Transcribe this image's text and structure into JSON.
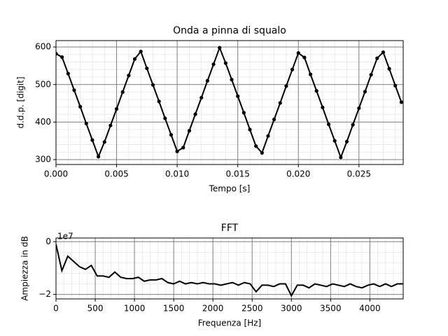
{
  "chart_data": [
    {
      "type": "line",
      "title": "Onda a pinna di squalo",
      "xlabel": "Tempo [s]",
      "ylabel": "d.d.p. [digit]",
      "x": [
        0,
        0.0005,
        0.001,
        0.0015,
        0.002,
        0.0025,
        0.003,
        0.0035,
        0.004,
        0.0045,
        0.005,
        0.0055,
        0.006,
        0.0065,
        0.007,
        0.0075,
        0.008,
        0.0085,
        0.009,
        0.0095,
        0.01,
        0.0105,
        0.011,
        0.0115,
        0.012,
        0.0125,
        0.013,
        0.0135,
        0.014,
        0.0145,
        0.015,
        0.0155,
        0.016,
        0.0165,
        0.017,
        0.0175,
        0.018,
        0.0185,
        0.019,
        0.0195,
        0.02,
        0.0205,
        0.021,
        0.0215,
        0.022,
        0.0225,
        0.023,
        0.0235,
        0.024,
        0.0245,
        0.025,
        0.0255,
        0.026,
        0.0265,
        0.027,
        0.0275,
        0.028,
        0.0285
      ],
      "values": [
        582,
        573,
        529,
        485,
        441,
        396,
        352,
        308,
        347,
        391,
        435,
        480,
        524,
        568,
        588,
        543,
        499,
        455,
        410,
        366,
        322,
        332,
        377,
        421,
        465,
        510,
        554,
        598,
        557,
        513,
        469,
        425,
        380,
        336,
        318,
        363,
        407,
        451,
        496,
        540,
        584,
        572,
        527,
        483,
        439,
        394,
        350,
        306,
        348,
        393,
        437,
        481,
        526,
        570,
        586,
        542,
        497,
        453
      ],
      "color": "#000000",
      "markers": true,
      "xlim": [
        0,
        0.02865
      ],
      "ylim": [
        287,
        617
      ],
      "xticks": [
        {
          "value": 0,
          "label": "0.000"
        },
        {
          "value": 0.005,
          "label": "0.005"
        },
        {
          "value": 0.01,
          "label": "0.010"
        },
        {
          "value": 0.015,
          "label": "0.015"
        },
        {
          "value": 0.02,
          "label": "0.020"
        },
        {
          "value": 0.025,
          "label": "0.025"
        }
      ],
      "yticks": [
        300,
        400,
        500,
        600
      ],
      "grid": true
    },
    {
      "type": "line",
      "title": "FFT",
      "xlabel": "Frequenza [Hz]",
      "ylabel": "Ampiezza in dB",
      "y_offset_label": "1e7",
      "x": [
        0,
        75,
        150,
        225,
        300,
        375,
        450,
        525,
        600,
        675,
        750,
        825,
        900,
        975,
        1050,
        1125,
        1200,
        1275,
        1350,
        1425,
        1500,
        1575,
        1650,
        1725,
        1800,
        1875,
        1950,
        2025,
        2100,
        2175,
        2250,
        2325,
        2400,
        2475,
        2550,
        2625,
        2700,
        2775,
        2850,
        2925,
        3000,
        3075,
        3150,
        3225,
        3300,
        3375,
        3450,
        3525,
        3600,
        3675,
        3750,
        3825,
        3900,
        3975,
        4050,
        4125,
        4200,
        4275,
        4350,
        4425
      ],
      "values": [
        -1000000,
        -11000000,
        -5500000,
        -7500000,
        -9500000,
        -10500000,
        -9000000,
        -13000000,
        -13000000,
        -13500000,
        -11500000,
        -13500000,
        -14000000,
        -14000000,
        -13500000,
        -15000000,
        -14500000,
        -14500000,
        -14000000,
        -15500000,
        -16000000,
        -15000000,
        -16000000,
        -15500000,
        -16000000,
        -15500000,
        -16000000,
        -16000000,
        -16500000,
        -16000000,
        -15500000,
        -16500000,
        -15500000,
        -16000000,
        -19000000,
        -16500000,
        -16500000,
        -17000000,
        -16000000,
        -16000000,
        -20500000,
        -16500000,
        -16500000,
        -17500000,
        -16000000,
        -16500000,
        -17000000,
        -16000000,
        -16500000,
        -17000000,
        -16000000,
        -17000000,
        -17500000,
        -16500000,
        -16000000,
        -17000000,
        -16000000,
        -17000000,
        -16000000,
        -16000000
      ],
      "color": "#000000",
      "markers": false,
      "xlim": [
        0,
        4425
      ],
      "ylim": [
        -21700000,
        1400000
      ],
      "xticks": [
        0,
        500,
        1000,
        1500,
        2000,
        2500,
        3000,
        3500,
        4000
      ],
      "yticks": [
        {
          "value": -20000000,
          "label": "−2"
        },
        0
      ],
      "grid": true
    }
  ]
}
